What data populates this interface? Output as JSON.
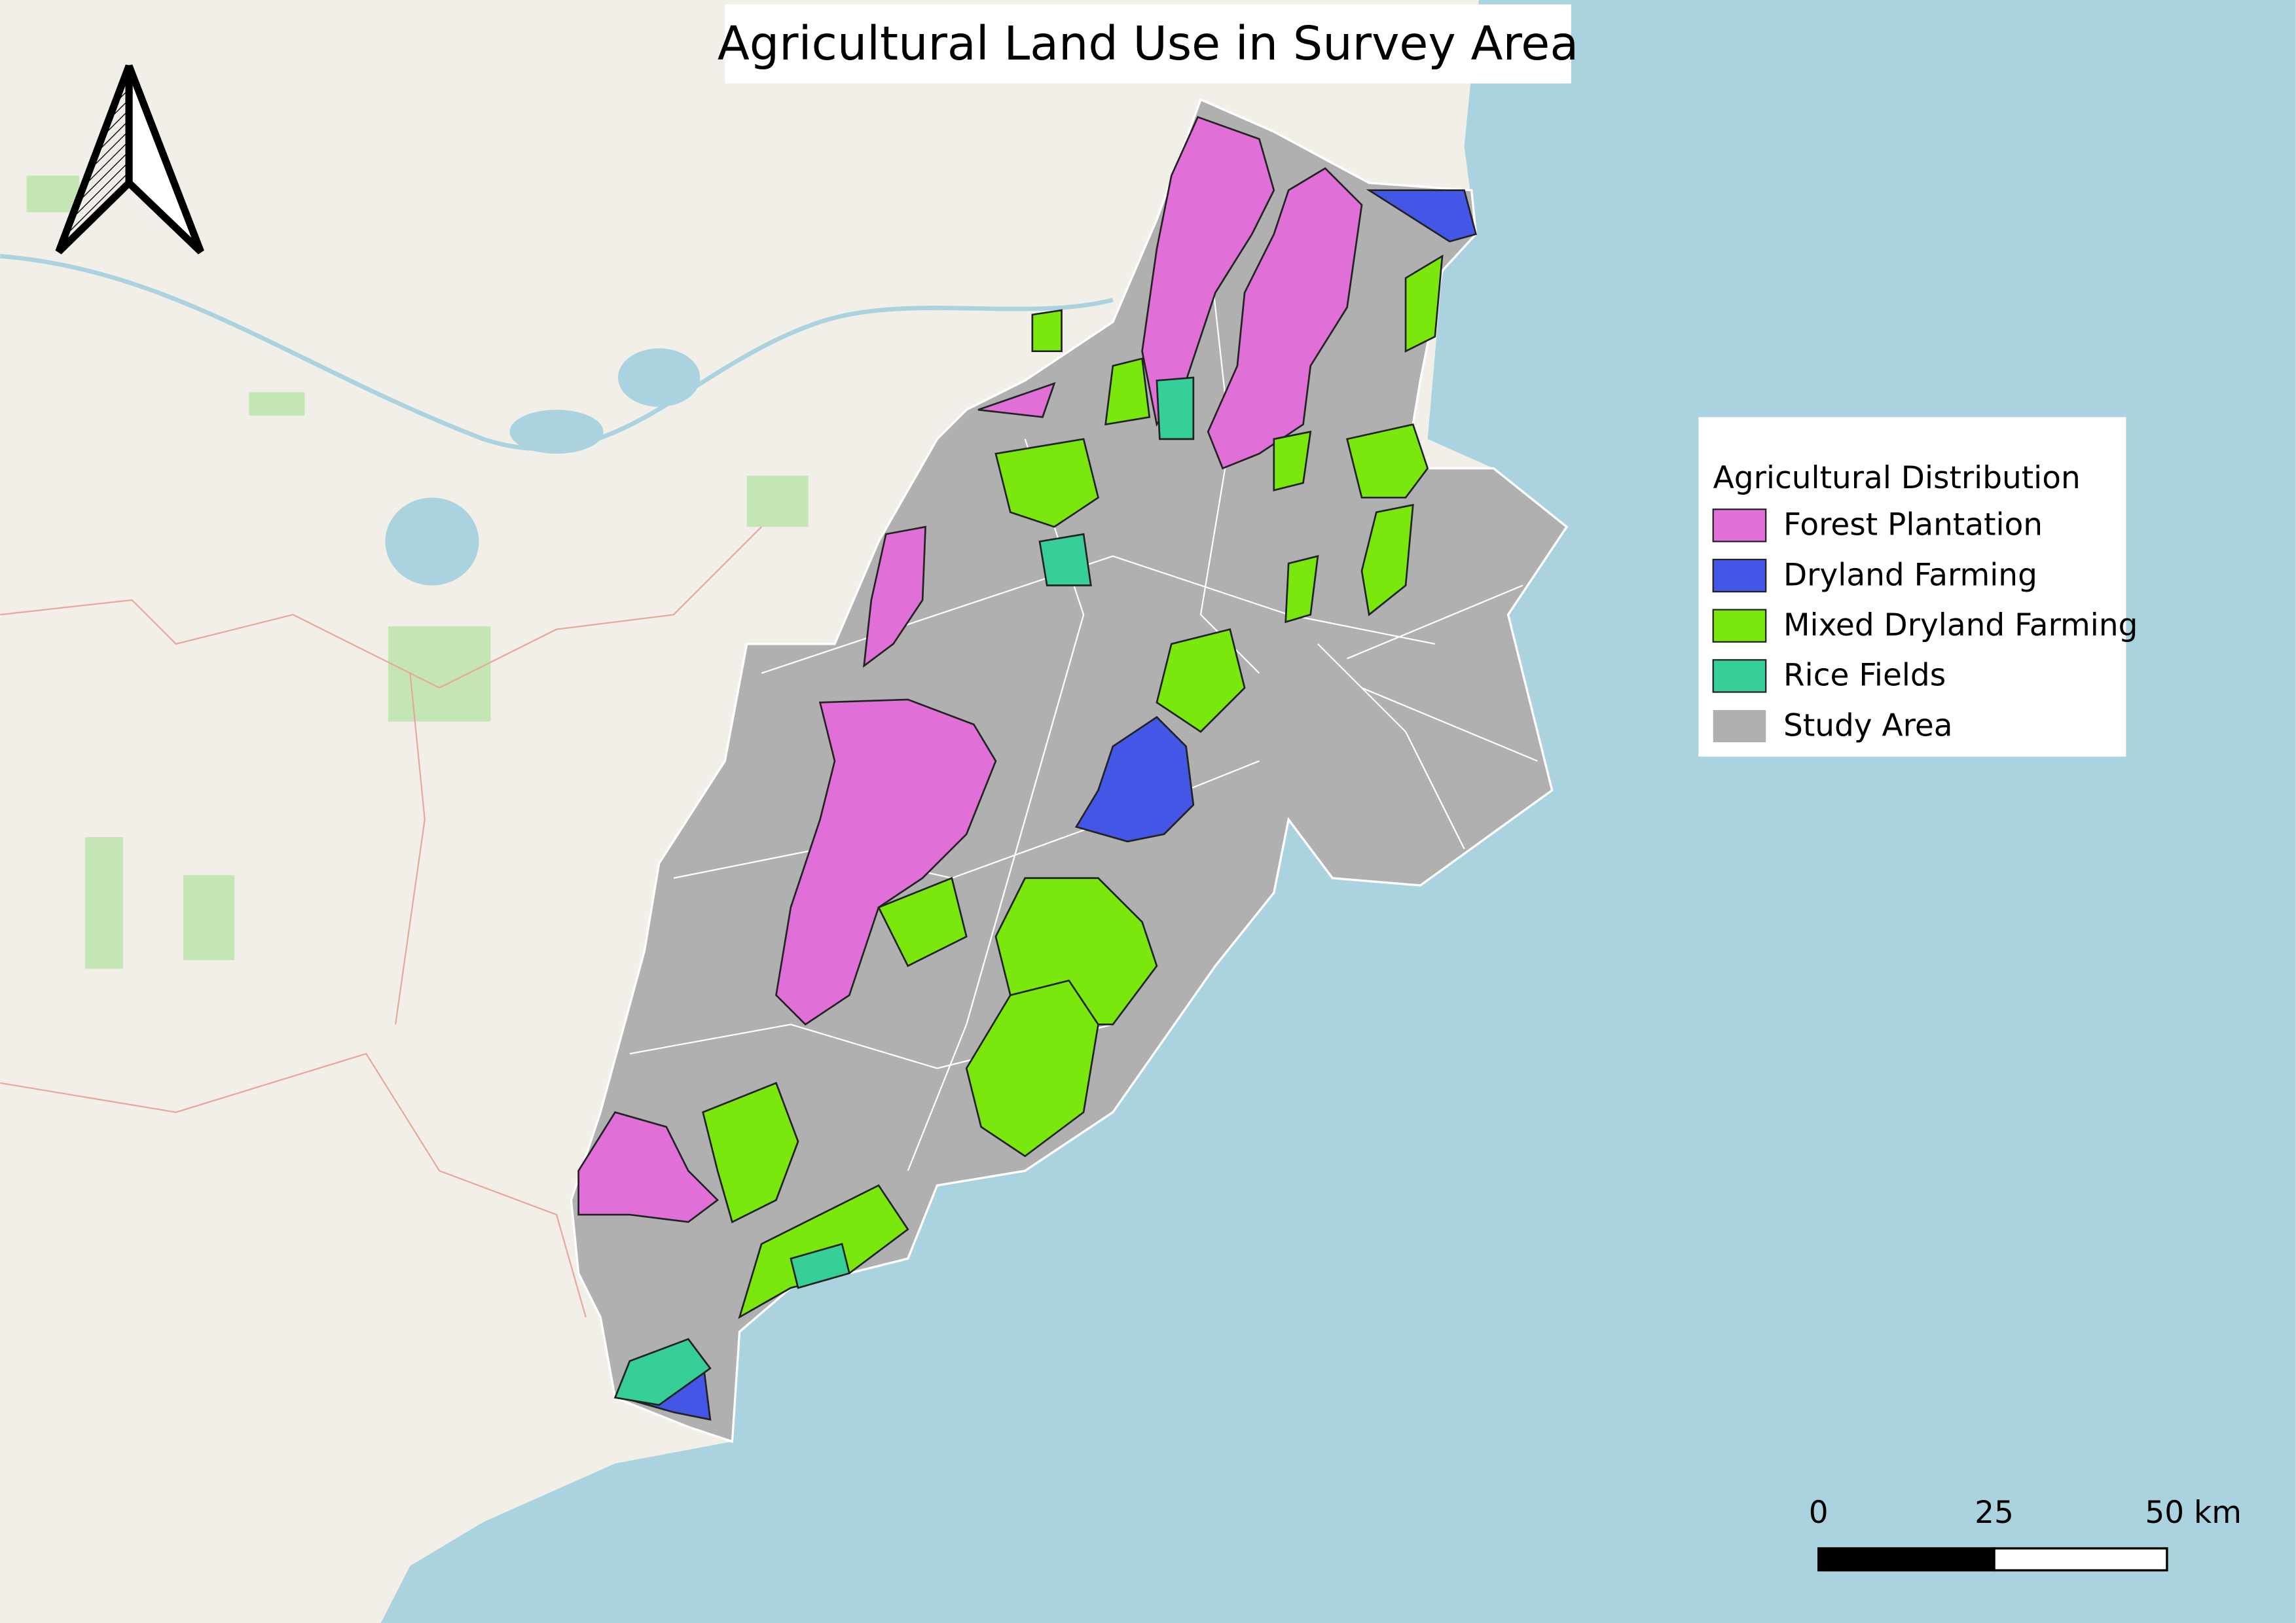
{
  "header": {
    "title": "Agricultural Land Use in Survey Area"
  },
  "legend": {
    "title": "Agricultural Distribution",
    "items": [
      {
        "label": "Forest Plantation",
        "color": "#e070d8"
      },
      {
        "label": "Dryland Farming",
        "color": "#4456e6"
      },
      {
        "label": "Mixed Dryland Farming",
        "color": "#7ae80c"
      },
      {
        "label": "Rice Fields",
        "color": "#36cf98"
      },
      {
        "label": "Study Area",
        "color": "#b0b0b0"
      }
    ]
  },
  "scale_bar": {
    "labels": [
      "0",
      "25",
      "50 km"
    ]
  }
}
